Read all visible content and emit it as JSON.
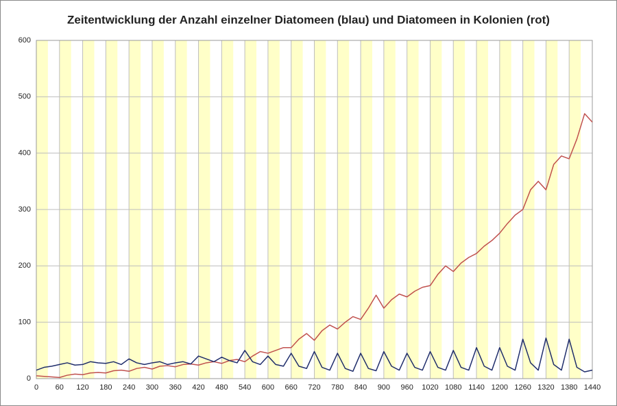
{
  "chart_data": {
    "type": "line",
    "title": "Zeitentwicklung der Anzahl einzelner Diatomeen (blau) und Diatomeen in Kolonien (rot)",
    "x": [
      0,
      20,
      40,
      60,
      80,
      100,
      120,
      140,
      160,
      180,
      200,
      220,
      240,
      260,
      280,
      300,
      320,
      340,
      360,
      380,
      400,
      420,
      440,
      460,
      480,
      500,
      520,
      540,
      560,
      580,
      600,
      620,
      640,
      660,
      680,
      700,
      720,
      740,
      760,
      780,
      800,
      820,
      840,
      860,
      880,
      900,
      920,
      940,
      960,
      980,
      1000,
      1020,
      1040,
      1060,
      1080,
      1100,
      1120,
      1140,
      1160,
      1180,
      1200,
      1220,
      1240,
      1260,
      1280,
      1300,
      1320,
      1340,
      1360,
      1380,
      1400,
      1420,
      1440
    ],
    "series": [
      {
        "color": "#c0504d",
        "values": [
          5,
          4,
          3,
          2,
          6,
          8,
          7,
          10,
          11,
          10,
          14,
          15,
          13,
          18,
          20,
          17,
          22,
          23,
          21,
          25,
          26,
          24,
          28,
          30,
          27,
          32,
          34,
          30,
          40,
          48,
          45,
          50,
          55,
          55,
          70,
          80,
          68,
          85,
          95,
          88,
          100,
          110,
          105,
          125,
          148,
          125,
          140,
          150,
          145,
          155,
          162,
          165,
          185,
          200,
          190,
          205,
          215,
          222,
          235,
          245,
          258,
          275,
          290,
          300,
          335,
          350,
          335,
          380,
          395,
          390,
          425,
          470,
          455
        ]
      },
      {
        "color": "#1f2d6b",
        "values": [
          15,
          20,
          22,
          25,
          28,
          24,
          25,
          30,
          28,
          27,
          30,
          25,
          35,
          28,
          25,
          28,
          30,
          25,
          28,
          30,
          26,
          40,
          35,
          30,
          38,
          32,
          28,
          50,
          30,
          25,
          40,
          25,
          22,
          45,
          22,
          18,
          48,
          20,
          15,
          45,
          18,
          13,
          45,
          18,
          14,
          48,
          22,
          15,
          45,
          20,
          15,
          48,
          20,
          15,
          50,
          20,
          15,
          55,
          22,
          15,
          55,
          22,
          15,
          70,
          28,
          15,
          72,
          25,
          15,
          70,
          20,
          12,
          15
        ]
      }
    ],
    "bands": [
      [
        0,
        30
      ],
      [
        60,
        90
      ],
      [
        120,
        150
      ],
      [
        180,
        210
      ],
      [
        240,
        270
      ],
      [
        300,
        330
      ],
      [
        360,
        390
      ],
      [
        420,
        450
      ],
      [
        480,
        510
      ],
      [
        540,
        570
      ],
      [
        600,
        630
      ],
      [
        660,
        690
      ],
      [
        720,
        750
      ],
      [
        780,
        810
      ],
      [
        840,
        870
      ],
      [
        900,
        930
      ],
      [
        960,
        990
      ],
      [
        1020,
        1050
      ],
      [
        1080,
        1110
      ],
      [
        1140,
        1170
      ],
      [
        1200,
        1230
      ],
      [
        1260,
        1290
      ],
      [
        1320,
        1350
      ],
      [
        1380,
        1410
      ]
    ],
    "band_color": "#ffffc8",
    "xlim": [
      0,
      1440
    ],
    "xticks": [
      0,
      60,
      120,
      180,
      240,
      300,
      360,
      420,
      480,
      540,
      600,
      660,
      720,
      780,
      840,
      900,
      960,
      1020,
      1080,
      1140,
      1200,
      1260,
      1320,
      1380,
      1440
    ],
    "ylim": [
      0,
      600
    ],
    "yticks": [
      0,
      100,
      200,
      300,
      400,
      500,
      600
    ],
    "grid": true
  }
}
